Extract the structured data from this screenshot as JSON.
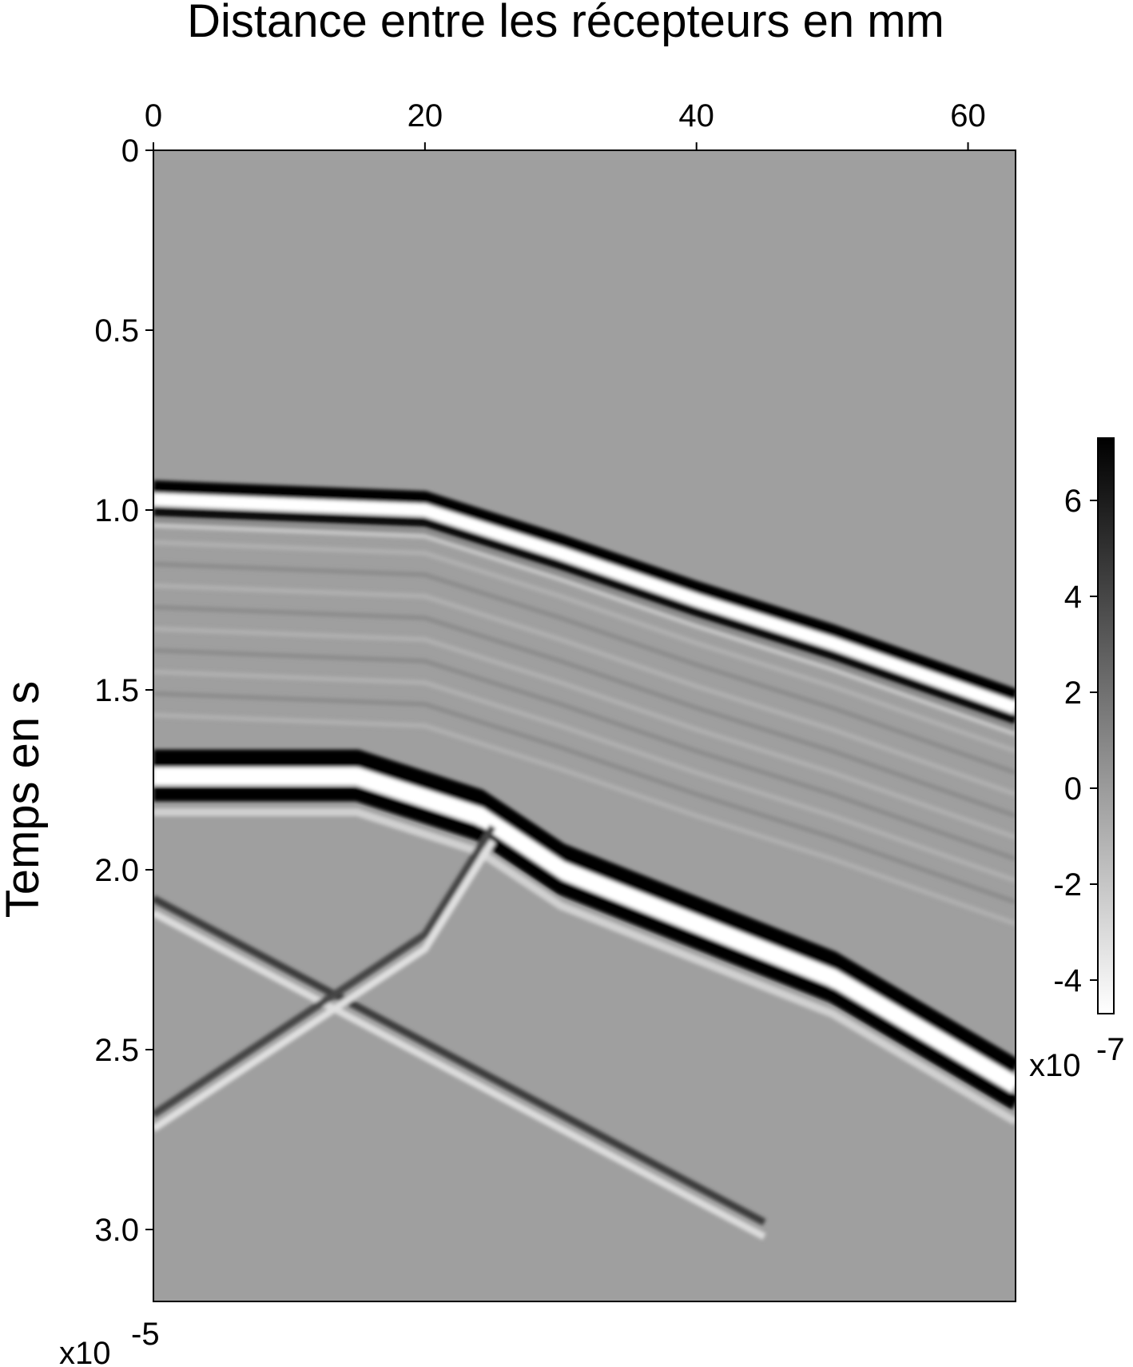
{
  "chart_data": {
    "type": "heatmap",
    "title": "Distance entre les récepteurs en mm",
    "xlabel": "",
    "ylabel": "Temps en s",
    "xlim": [
      0,
      63.5
    ],
    "ylim": [
      0,
      3.2
    ],
    "x_ticks": [
      0,
      20,
      40,
      60
    ],
    "x_tick_labels": [
      "0",
      "20",
      "40",
      "60"
    ],
    "y_ticks": [
      0,
      0.5,
      1.0,
      1.5,
      2.0,
      2.5,
      3.0
    ],
    "y_tick_labels": [
      "0",
      "0.5",
      "1.0",
      "1.5",
      "2.0",
      "2.5",
      "3.0"
    ],
    "y_scale_label": {
      "base": "x10",
      "exponent": "-5"
    },
    "x_axis_position": "top",
    "colormap": "gray",
    "colorbar": {
      "range": [
        -4.7,
        7.3
      ],
      "ticks": [
        -4,
        -2,
        0,
        2,
        4,
        6
      ],
      "tick_labels": [
        "-4",
        "-2",
        "0",
        "2",
        "4",
        "6"
      ],
      "scale_label": {
        "base": "x10",
        "exponent": "-7"
      },
      "low_color": "#ffffff",
      "high_color": "#000000",
      "position": "right"
    },
    "events": [
      {
        "name": "direct_wave",
        "t0": 0.97,
        "description": "strong arrival curving downward with distance",
        "points": [
          [
            0,
            0.97
          ],
          [
            20,
            1.0
          ],
          [
            30,
            1.12
          ],
          [
            40,
            1.25
          ],
          [
            50,
            1.37
          ],
          [
            63.5,
            1.55
          ]
        ]
      },
      {
        "name": "reflection",
        "description": "strongest arrival",
        "points": [
          [
            0,
            1.74
          ],
          [
            15,
            1.74
          ],
          [
            24,
            1.85
          ],
          [
            30,
            2.0
          ],
          [
            40,
            2.15
          ],
          [
            50,
            2.3
          ],
          [
            63.5,
            2.6
          ]
        ]
      },
      {
        "name": "crossing_waves_a",
        "points": [
          [
            0,
            2.1
          ],
          [
            15,
            2.4
          ],
          [
            30,
            2.7
          ],
          [
            45,
            3.0
          ]
        ]
      },
      {
        "name": "crossing_waves_b",
        "points": [
          [
            0,
            2.7
          ],
          [
            10,
            2.45
          ],
          [
            20,
            2.2
          ],
          [
            25,
            1.9
          ]
        ]
      }
    ]
  }
}
